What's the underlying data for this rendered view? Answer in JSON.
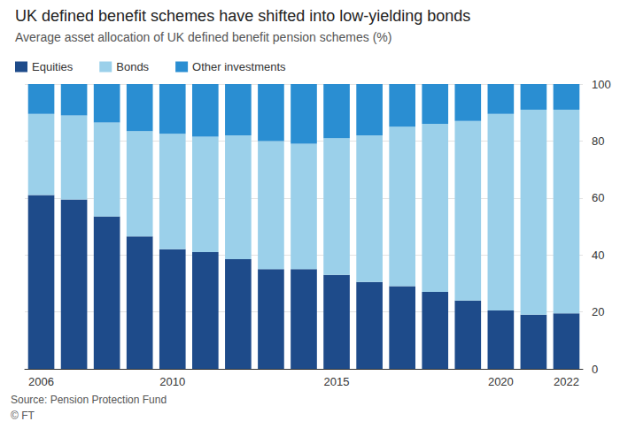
{
  "chart_data": {
    "type": "bar",
    "title": "UK defined benefit schemes have shifted into low-yielding bonds",
    "subtitle": "Average asset allocation of UK defined benefit pension schemes (%)",
    "annotations": [
      "Source: Pension Protection Fund",
      "© FT"
    ],
    "categories": [
      "2006",
      null,
      null,
      null,
      "2010",
      null,
      null,
      null,
      null,
      "2015",
      null,
      null,
      null,
      null,
      "2020",
      null,
      "2022"
    ],
    "series": [
      {
        "name": "Equities",
        "color": "#1e4b8a",
        "values": [
          61,
          59.5,
          53.5,
          46.5,
          42,
          41,
          38.5,
          35,
          35,
          33,
          30.5,
          29,
          27,
          24,
          20.5,
          19,
          19.5
        ]
      },
      {
        "name": "Bonds",
        "color": "#9bd0ea",
        "values": [
          28.5,
          29.5,
          33,
          37,
          40.5,
          40.5,
          43.5,
          45,
          44,
          48,
          51.5,
          56,
          59,
          63,
          69,
          72,
          71.5
        ]
      },
      {
        "name": "Other investments",
        "color": "#2a8ed2",
        "values": [
          10.5,
          11,
          13.5,
          16.5,
          17.5,
          18.5,
          18,
          20,
          21,
          19,
          18,
          15,
          14,
          13,
          10.5,
          9,
          9
        ]
      }
    ],
    "stacked": true,
    "ylim": [
      0,
      100
    ],
    "yticks": [
      0,
      20,
      40,
      60,
      80,
      100
    ],
    "grid": true,
    "legend": "top-left"
  }
}
